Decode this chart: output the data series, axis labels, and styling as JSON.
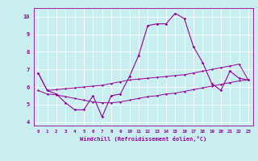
{
  "xlabel": "Windchill (Refroidissement éolien,°C)",
  "ylabel": "",
  "bg_color": "#c8eef0",
  "line_color": "#990099",
  "grid_color": "#ffffff",
  "x_data": [
    0,
    1,
    2,
    3,
    4,
    5,
    6,
    7,
    8,
    9,
    10,
    11,
    12,
    13,
    14,
    15,
    16,
    17,
    18,
    19,
    20,
    21,
    22,
    23
  ],
  "y_main": [
    6.8,
    5.8,
    5.6,
    5.1,
    4.7,
    4.7,
    5.5,
    4.3,
    5.5,
    5.6,
    6.6,
    7.8,
    9.5,
    9.6,
    9.6,
    10.2,
    9.9,
    8.3,
    7.4,
    6.2,
    5.8,
    6.9,
    6.5,
    6.4
  ],
  "y_upper": [
    6.8,
    5.8,
    5.85,
    5.9,
    5.95,
    6.0,
    6.05,
    6.1,
    6.2,
    6.3,
    6.4,
    6.45,
    6.5,
    6.55,
    6.6,
    6.65,
    6.7,
    6.8,
    6.9,
    7.0,
    7.1,
    7.2,
    7.3,
    6.4
  ],
  "y_lower": [
    5.8,
    5.6,
    5.55,
    5.45,
    5.35,
    5.25,
    5.15,
    5.1,
    5.1,
    5.15,
    5.25,
    5.35,
    5.45,
    5.5,
    5.6,
    5.65,
    5.75,
    5.85,
    5.95,
    6.05,
    6.15,
    6.25,
    6.35,
    6.4
  ],
  "xlim": [
    -0.5,
    23.5
  ],
  "ylim": [
    3.8,
    10.5
  ],
  "yticks": [
    4,
    5,
    6,
    7,
    8,
    9,
    10
  ],
  "xticks": [
    0,
    1,
    2,
    3,
    4,
    5,
    6,
    7,
    8,
    9,
    10,
    11,
    12,
    13,
    14,
    15,
    16,
    17,
    18,
    19,
    20,
    21,
    22,
    23
  ],
  "figsize": [
    3.2,
    2.0
  ],
  "dpi": 100
}
